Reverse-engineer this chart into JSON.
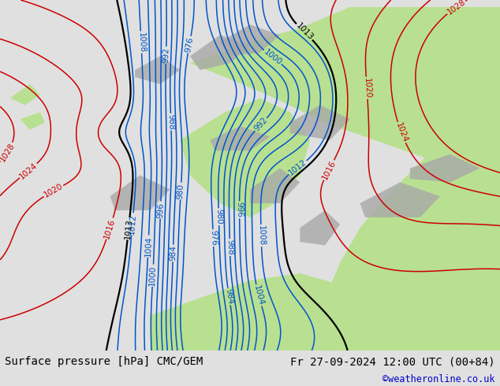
{
  "title_left": "Surface pressure [hPa] CMC/GEM",
  "title_right": "Fr 27-09-2024 12:00 UTC (00+84)",
  "copyright": "©weatheronline.co.uk",
  "bg_left_color": "#d8d8d8",
  "bg_right_color": "#c8e8a0",
  "land_green_color": "#b8e090",
  "gray_color": "#a8a8a8",
  "footer_bg": "#e0e0e0",
  "footer_text_color": "#000000",
  "copyright_color": "#0000cc",
  "contour_red_color": "#cc0000",
  "contour_blue_color": "#0055cc",
  "contour_black_color": "#000000",
  "label_fontsize": 8,
  "footer_fontsize": 10
}
